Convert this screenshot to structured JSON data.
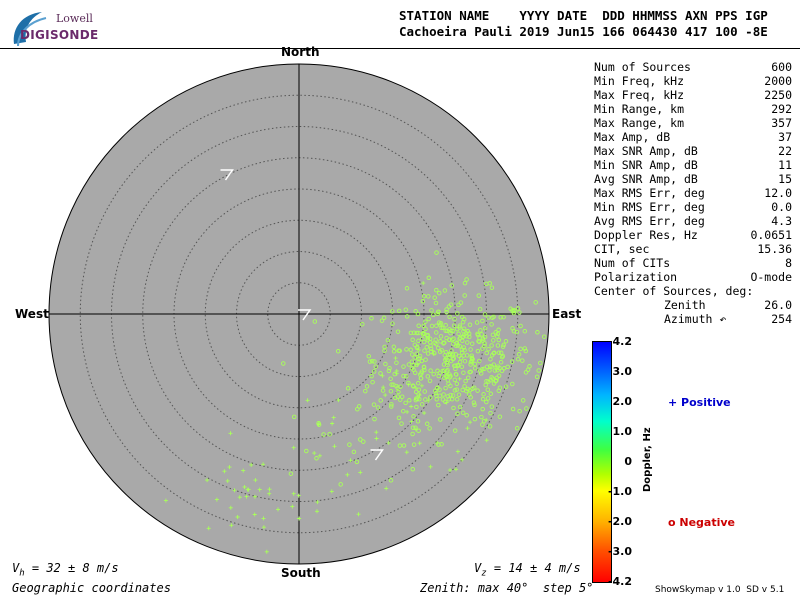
{
  "logo": {
    "line1": "Lowell",
    "line2": "DIGISONDE"
  },
  "header": {
    "line1": "STATION NAME    YYYY DATE  DDD HHMMSS AXN PPS IGP",
    "line2": "Cachoeira Pauli 2019 Jun15 166 064430 417 100 -8E"
  },
  "compass": {
    "north": "North",
    "south": "South",
    "east": "East",
    "west": "West"
  },
  "stats": [
    {
      "label": "Num of Sources",
      "value": "600"
    },
    {
      "label": "Min Freq, kHz",
      "value": "2000"
    },
    {
      "label": "Max Freq, kHz",
      "value": "2250"
    },
    {
      "label": "Min Range, km",
      "value": "292"
    },
    {
      "label": "Max Range, km",
      "value": "357"
    },
    {
      "label": "Max Amp, dB",
      "value": "37"
    },
    {
      "label": "Max SNR Amp, dB",
      "value": "22"
    },
    {
      "label": "Min SNR Amp, dB",
      "value": "11"
    },
    {
      "label": "Avg SNR Amp, dB",
      "value": "15"
    },
    {
      "label": "Max RMS Err, deg",
      "value": "12.0"
    },
    {
      "label": "Min RMS Err, deg",
      "value": "0.0"
    },
    {
      "label": "Avg RMS Err, deg",
      "value": "4.3"
    },
    {
      "label": "Doppler Res, Hz",
      "value": "0.0651"
    },
    {
      "label": "CIT, sec",
      "value": "15.36"
    },
    {
      "label": "Num of CITs",
      "value": "8"
    },
    {
      "label": "Polarization",
      "value": "O-mode"
    },
    {
      "label": "Center of Sources, deg:",
      "value": ""
    },
    {
      "label": "Zenith",
      "value": "26.0",
      "sub": true
    },
    {
      "label": "Azimuth ↶",
      "value": "254",
      "sub": true
    }
  ],
  "colorbar": {
    "ticks": [
      "4.2",
      "3.0",
      "2.0",
      "1.0",
      "0",
      "-1.0",
      "-2.0",
      "-3.0",
      "-4.2"
    ],
    "label": "Doppler, Hz",
    "positive": "+ Positive",
    "negative": "o Negative",
    "positive_color": "#0000cc",
    "negative_color": "#cc0000"
  },
  "footer": {
    "vh_sym": "V",
    "vh_sub": "h",
    "vh_rest": " = 32 ± 8 m/s",
    "vz_sym": "V",
    "vz_sub": "z",
    "vz_rest": " = 14 ± 4 m/s",
    "coords": "Geographic coordinates",
    "zenith": "Zenith: max 40°  step 5°",
    "version": "ShowSkymap v 1.0  SD v 5.1"
  },
  "chart_data": {
    "type": "scatter",
    "projection": "polar-zenith-azimuth",
    "zenith_max_deg": 40,
    "zenith_step_deg": 5,
    "x_axis": "east-west",
    "y_axis": "north-south",
    "colors": {
      "disk": "#a9a9a9",
      "grid": "#555555",
      "source": "#a8ff5a"
    },
    "arrows": [
      {
        "name": "drift-arrow-upper-left",
        "x": -0.29,
        "y": 0.56
      },
      {
        "name": "drift-arrow-center",
        "x": 0.02,
        "y": 0.0
      },
      {
        "name": "drift-arrow-lower",
        "x": 0.31,
        "y": -0.56
      }
    ],
    "clusters": [
      {
        "name": "east-core",
        "cx": 0.62,
        "cy": -0.18,
        "sx": 0.16,
        "sy": 0.13,
        "n": 460,
        "marker": "circle"
      },
      {
        "name": "east-spread",
        "cx": 0.45,
        "cy": -0.35,
        "sx": 0.18,
        "sy": 0.15,
        "n": 80,
        "marker": "mixed"
      },
      {
        "name": "southwest-tail",
        "cx": -0.22,
        "cy": -0.75,
        "sx": 0.15,
        "sy": 0.09,
        "n": 35,
        "marker": "plus"
      },
      {
        "name": "south-mid",
        "cx": 0.1,
        "cy": -0.55,
        "sx": 0.12,
        "sy": 0.12,
        "n": 25,
        "marker": "mixed"
      }
    ]
  }
}
